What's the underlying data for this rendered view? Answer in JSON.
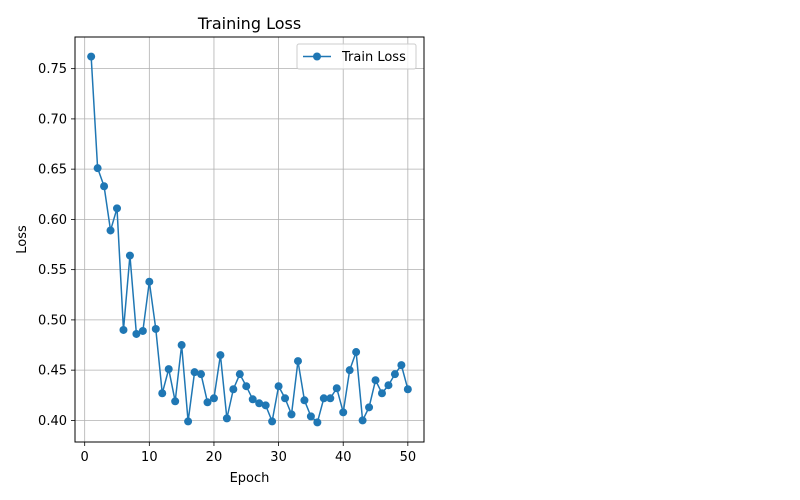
{
  "chart_data": {
    "type": "line",
    "title": "Training Loss",
    "xlabel": "Epoch",
    "ylabel": "Loss",
    "xlim": [
      -1.5,
      52.5
    ],
    "ylim": [
      0.3785,
      0.7815
    ],
    "xticks": [
      0,
      10,
      20,
      30,
      40,
      50
    ],
    "yticks": [
      0.4,
      0.45,
      0.5,
      0.55,
      0.6,
      0.65,
      0.7,
      0.75
    ],
    "ytick_labels": [
      "0.40",
      "0.45",
      "0.50",
      "0.55",
      "0.60",
      "0.65",
      "0.70",
      "0.75"
    ],
    "grid": true,
    "legend_position": "top-right",
    "colors": {
      "series": "#1f77b4",
      "grid": "#b0b0b0",
      "axes": "#000000"
    },
    "series": [
      {
        "name": "Train Loss",
        "marker": "circle",
        "x": [
          1,
          2,
          3,
          4,
          5,
          6,
          7,
          8,
          9,
          10,
          11,
          12,
          13,
          14,
          15,
          16,
          17,
          18,
          19,
          20,
          21,
          22,
          23,
          24,
          25,
          26,
          27,
          28,
          29,
          30,
          31,
          32,
          33,
          34,
          35,
          36,
          37,
          38,
          39,
          40,
          41,
          42,
          43,
          44,
          45,
          46,
          47,
          48,
          49,
          50
        ],
        "y": [
          0.762,
          0.651,
          0.633,
          0.589,
          0.611,
          0.49,
          0.564,
          0.486,
          0.489,
          0.538,
          0.491,
          0.427,
          0.451,
          0.419,
          0.475,
          0.399,
          0.448,
          0.446,
          0.418,
          0.422,
          0.465,
          0.402,
          0.431,
          0.446,
          0.434,
          0.421,
          0.417,
          0.415,
          0.399,
          0.434,
          0.422,
          0.406,
          0.459,
          0.42,
          0.404,
          0.398,
          0.422,
          0.422,
          0.432,
          0.408,
          0.45,
          0.468,
          0.4,
          0.413,
          0.44,
          0.427,
          0.435,
          0.446,
          0.455,
          0.431
        ]
      }
    ]
  }
}
